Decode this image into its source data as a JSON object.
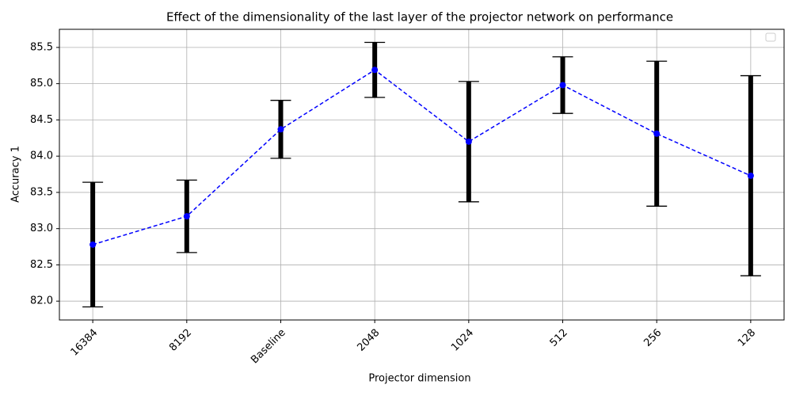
{
  "chart_data": {
    "type": "line",
    "title": "Effect of the dimensionality of the last layer of the projector network on performance",
    "x_label": "Projector dimension",
    "y_label": "Accuracy 1",
    "categories": [
      "16384",
      "8192",
      "Baseline",
      "2048",
      "1024",
      "512",
      "256",
      "128"
    ],
    "values": [
      82.78,
      83.17,
      84.37,
      85.19,
      84.2,
      84.98,
      84.31,
      83.73
    ],
    "errors": [
      0.86,
      0.5,
      0.4,
      0.38,
      0.83,
      0.39,
      1.0,
      1.38
    ],
    "color": "blue",
    "errorbar_color": "black",
    "ylim": [
      81.74,
      85.75
    ],
    "yticks": [
      {
        "value": 82,
        "label": "82.0"
      },
      82.5,
      {
        "value": 83,
        "label": "83.0"
      },
      83.5,
      {
        "value": 84,
        "label": "84.0"
      },
      84.5,
      {
        "value": 85,
        "label": "85.0"
      },
      85.5
    ],
    "grid": true
  }
}
